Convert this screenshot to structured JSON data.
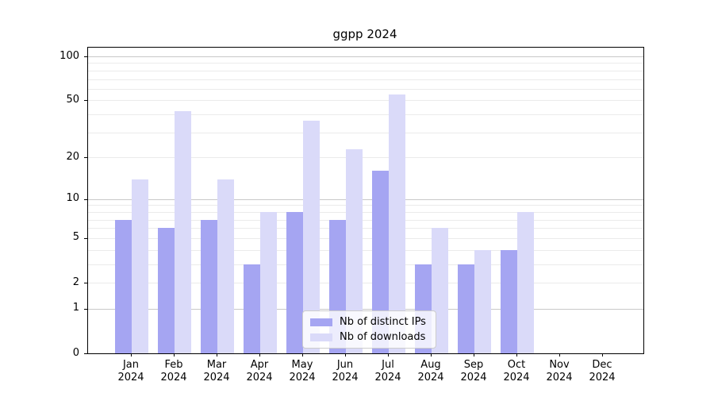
{
  "title": "ggpp 2024",
  "chart_data": {
    "type": "bar",
    "title": "ggpp 2024",
    "categories": [
      "Jan 2024",
      "Feb 2024",
      "Mar 2024",
      "Apr 2024",
      "May 2024",
      "Jun 2024",
      "Jul 2024",
      "Aug 2024",
      "Sep 2024",
      "Oct 2024",
      "Nov 2024",
      "Dec 2024"
    ],
    "series": [
      {
        "name": "Nb of distinct IPs",
        "color": "#a5a5f2",
        "values": [
          7,
          6,
          7,
          3,
          8,
          7,
          16,
          3,
          3,
          4,
          0,
          0
        ]
      },
      {
        "name": "Nb of downloads",
        "color": "#dadaf9",
        "values": [
          14,
          42,
          14,
          8,
          36,
          23,
          55,
          6,
          4,
          8,
          0,
          0
        ]
      }
    ],
    "yscale": "log10(value+1)",
    "yticks": [
      0,
      1,
      2,
      5,
      10,
      20,
      50,
      100
    ],
    "minor_yticks": [
      2,
      3,
      4,
      5,
      6,
      7,
      8,
      9,
      20,
      30,
      40,
      50,
      60,
      70,
      80,
      90
    ],
    "major_gridlines": [
      1,
      10,
      100
    ],
    "ylim": [
      0,
      113
    ],
    "xlabel": "",
    "ylabel": "",
    "grid": true,
    "legend_position": "lower center"
  },
  "legend": {
    "items": [
      {
        "label": "Nb of distinct IPs",
        "color": "#a5a5f2"
      },
      {
        "label": "Nb of downloads",
        "color": "#dadaf9"
      }
    ]
  },
  "colors": {
    "bar_dark": "#a5a5f2",
    "bar_light": "#dadaf9",
    "grid_major": "#c8c8c8",
    "grid_minor": "#ebebeb",
    "spine": "#000000",
    "legend_border": "#cccccc",
    "legend_bg": "rgba(255,255,255,0.8)"
  }
}
